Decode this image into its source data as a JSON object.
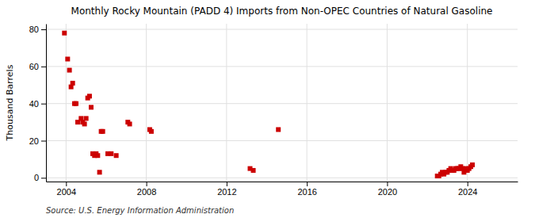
{
  "chart_data": {
    "type": "scatter",
    "title": "Monthly Rocky Mountain (PADD 4) Imports from Non-OPEC Countries of Natural Gasoline",
    "ylabel": "Thousand Barrels",
    "annotations": [
      "Source: U.S. Energy Information Administration"
    ],
    "color": "#cc0000",
    "marker": "square",
    "grid": true,
    "xlim": [
      2003.0,
      2026.5
    ],
    "ylim": [
      -2,
      83
    ],
    "xticks": [
      2004,
      2008,
      2012,
      2016,
      2020,
      2024
    ],
    "yticks": [
      0,
      20,
      40,
      60,
      80
    ],
    "x": [
      2003.92,
      2004.08,
      2004.17,
      2004.25,
      2004.33,
      2004.42,
      2004.5,
      2004.58,
      2004.75,
      2004.83,
      2004.92,
      2005.0,
      2005.08,
      2005.17,
      2005.25,
      2005.33,
      2005.42,
      2005.5,
      2005.58,
      2005.67,
      2005.75,
      2005.83,
      2006.08,
      2006.25,
      2006.5,
      2007.08,
      2007.17,
      2008.17,
      2008.25,
      2013.17,
      2013.33,
      2014.58,
      2022.5,
      2022.58,
      2022.67,
      2022.75,
      2022.83,
      2022.92,
      2023.0,
      2023.08,
      2023.17,
      2023.25,
      2023.33,
      2023.42,
      2023.5,
      2023.58,
      2023.67,
      2023.75,
      2023.83,
      2023.92,
      2024.0,
      2024.08,
      2024.17,
      2024.25
    ],
    "values": [
      78,
      64,
      58,
      49,
      51,
      40,
      40,
      30,
      32,
      30,
      29,
      32,
      43,
      44,
      38,
      13,
      12,
      13,
      12,
      3,
      25,
      25,
      13,
      13,
      12,
      30,
      29,
      26,
      25,
      5,
      4,
      26,
      1,
      1,
      2,
      3,
      2,
      3,
      3,
      4,
      5,
      4,
      4,
      5,
      5,
      5,
      6,
      5,
      3,
      5,
      4,
      5,
      6,
      7
    ]
  }
}
